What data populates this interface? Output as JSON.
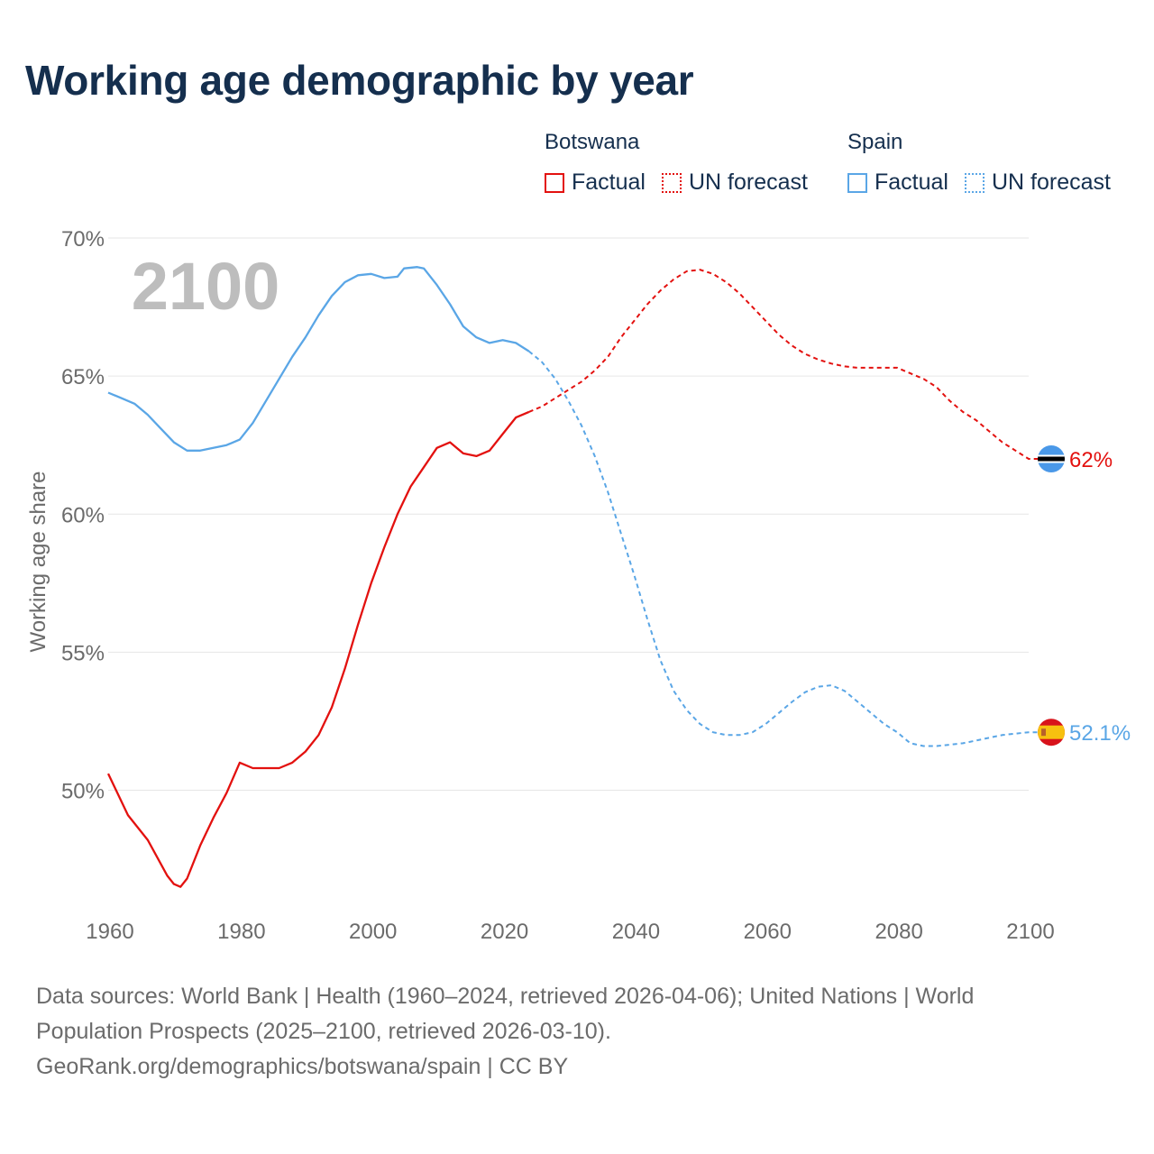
{
  "title": "Working age demographic by year",
  "legend": {
    "groups": [
      {
        "country": "Botswana",
        "factual_label": "Factual",
        "forecast_label": "UN forecast",
        "color": "#e3110f"
      },
      {
        "country": "Spain",
        "factual_label": "Factual",
        "forecast_label": "UN forecast",
        "color": "#5aa6e6"
      }
    ]
  },
  "footer": {
    "sources": "Data sources: World Bank | Health (1960–2024, retrieved 2026-04-06); United Nations | World Population Prospects (2025–2100, retrieved 2026-03-10).",
    "credit": "GeoRank.org/demographics/botswana/spain | CC BY"
  },
  "chart_data": {
    "type": "line",
    "title": "Working age demographic by year",
    "ylabel": "Working age share",
    "xlabel": "",
    "year_watermark": "2100",
    "xlim": [
      1960,
      2100
    ],
    "ylim": [
      46,
      70
    ],
    "x_ticks": [
      "1960",
      "1980",
      "2000",
      "2020",
      "2040",
      "2060",
      "2080",
      "2100"
    ],
    "y_ticks": [
      {
        "value": 70,
        "label": "70%"
      },
      {
        "value": 65,
        "label": "65%"
      },
      {
        "value": 60,
        "label": "60%"
      },
      {
        "value": 55,
        "label": "55%"
      },
      {
        "value": 50,
        "label": "50%"
      }
    ],
    "grid": true,
    "factual_end_year": 2024,
    "series": [
      {
        "name": "Botswana",
        "color": "#e3110f",
        "end_label": "62%",
        "flag": "botswana",
        "points": [
          [
            1960,
            50.6
          ],
          [
            1963,
            49.1
          ],
          [
            1966,
            48.2
          ],
          [
            1969,
            46.9
          ],
          [
            1970,
            46.6
          ],
          [
            1971,
            46.5
          ],
          [
            1972,
            46.8
          ],
          [
            1974,
            48.0
          ],
          [
            1976,
            49.0
          ],
          [
            1978,
            49.9
          ],
          [
            1980,
            51.0
          ],
          [
            1982,
            50.8
          ],
          [
            1984,
            50.8
          ],
          [
            1986,
            50.8
          ],
          [
            1988,
            51.0
          ],
          [
            1990,
            51.4
          ],
          [
            1992,
            52.0
          ],
          [
            1994,
            53.0
          ],
          [
            1996,
            54.4
          ],
          [
            1998,
            56.0
          ],
          [
            2000,
            57.5
          ],
          [
            2002,
            58.8
          ],
          [
            2004,
            60.0
          ],
          [
            2006,
            61.0
          ],
          [
            2008,
            61.7
          ],
          [
            2010,
            62.4
          ],
          [
            2012,
            62.6
          ],
          [
            2014,
            62.2
          ],
          [
            2016,
            62.1
          ],
          [
            2018,
            62.3
          ],
          [
            2020,
            62.9
          ],
          [
            2022,
            63.5
          ],
          [
            2024,
            63.7
          ],
          [
            2026,
            63.9
          ],
          [
            2028,
            64.2
          ],
          [
            2030,
            64.5
          ],
          [
            2032,
            64.8
          ],
          [
            2034,
            65.2
          ],
          [
            2036,
            65.7
          ],
          [
            2038,
            66.4
          ],
          [
            2040,
            67.0
          ],
          [
            2042,
            67.6
          ],
          [
            2044,
            68.1
          ],
          [
            2046,
            68.5
          ],
          [
            2048,
            68.8
          ],
          [
            2050,
            68.85
          ],
          [
            2052,
            68.7
          ],
          [
            2054,
            68.4
          ],
          [
            2056,
            68.0
          ],
          [
            2058,
            67.5
          ],
          [
            2060,
            67.0
          ],
          [
            2062,
            66.5
          ],
          [
            2064,
            66.1
          ],
          [
            2066,
            65.8
          ],
          [
            2068,
            65.6
          ],
          [
            2070,
            65.45
          ],
          [
            2072,
            65.35
          ],
          [
            2074,
            65.3
          ],
          [
            2076,
            65.3
          ],
          [
            2078,
            65.3
          ],
          [
            2080,
            65.3
          ],
          [
            2082,
            65.1
          ],
          [
            2084,
            64.9
          ],
          [
            2086,
            64.6
          ],
          [
            2088,
            64.1
          ],
          [
            2090,
            63.7
          ],
          [
            2092,
            63.4
          ],
          [
            2094,
            63.0
          ],
          [
            2096,
            62.6
          ],
          [
            2098,
            62.3
          ],
          [
            2100,
            62.0
          ],
          [
            2102,
            62.0
          ]
        ]
      },
      {
        "name": "Spain",
        "color": "#5aa6e6",
        "end_label": "52.1%",
        "flag": "spain",
        "points": [
          [
            1960,
            64.4
          ],
          [
            1962,
            64.2
          ],
          [
            1964,
            64.0
          ],
          [
            1966,
            63.6
          ],
          [
            1968,
            63.1
          ],
          [
            1970,
            62.6
          ],
          [
            1972,
            62.3
          ],
          [
            1974,
            62.3
          ],
          [
            1976,
            62.4
          ],
          [
            1978,
            62.5
          ],
          [
            1980,
            62.7
          ],
          [
            1982,
            63.3
          ],
          [
            1984,
            64.1
          ],
          [
            1986,
            64.9
          ],
          [
            1988,
            65.7
          ],
          [
            1990,
            66.4
          ],
          [
            1992,
            67.2
          ],
          [
            1994,
            67.9
          ],
          [
            1996,
            68.4
          ],
          [
            1998,
            68.65
          ],
          [
            2000,
            68.7
          ],
          [
            2002,
            68.55
          ],
          [
            2004,
            68.6
          ],
          [
            2005,
            68.9
          ],
          [
            2007,
            68.95
          ],
          [
            2008,
            68.9
          ],
          [
            2010,
            68.3
          ],
          [
            2012,
            67.6
          ],
          [
            2014,
            66.8
          ],
          [
            2016,
            66.4
          ],
          [
            2018,
            66.2
          ],
          [
            2020,
            66.3
          ],
          [
            2022,
            66.2
          ],
          [
            2024,
            65.9
          ],
          [
            2026,
            65.5
          ],
          [
            2028,
            64.9
          ],
          [
            2030,
            64.1
          ],
          [
            2032,
            63.2
          ],
          [
            2034,
            62.1
          ],
          [
            2036,
            60.8
          ],
          [
            2038,
            59.3
          ],
          [
            2040,
            57.8
          ],
          [
            2042,
            56.2
          ],
          [
            2044,
            54.7
          ],
          [
            2046,
            53.6
          ],
          [
            2048,
            52.9
          ],
          [
            2050,
            52.4
          ],
          [
            2052,
            52.1
          ],
          [
            2054,
            52.0
          ],
          [
            2056,
            52.0
          ],
          [
            2058,
            52.1
          ],
          [
            2060,
            52.4
          ],
          [
            2062,
            52.8
          ],
          [
            2064,
            53.2
          ],
          [
            2066,
            53.55
          ],
          [
            2068,
            53.75
          ],
          [
            2070,
            53.8
          ],
          [
            2072,
            53.6
          ],
          [
            2074,
            53.2
          ],
          [
            2076,
            52.8
          ],
          [
            2078,
            52.4
          ],
          [
            2080,
            52.1
          ],
          [
            2082,
            51.7
          ],
          [
            2084,
            51.6
          ],
          [
            2086,
            51.6
          ],
          [
            2088,
            51.65
          ],
          [
            2090,
            51.7
          ],
          [
            2092,
            51.8
          ],
          [
            2094,
            51.9
          ],
          [
            2096,
            52.0
          ],
          [
            2098,
            52.05
          ],
          [
            2100,
            52.1
          ],
          [
            2102,
            52.1
          ]
        ]
      }
    ]
  }
}
